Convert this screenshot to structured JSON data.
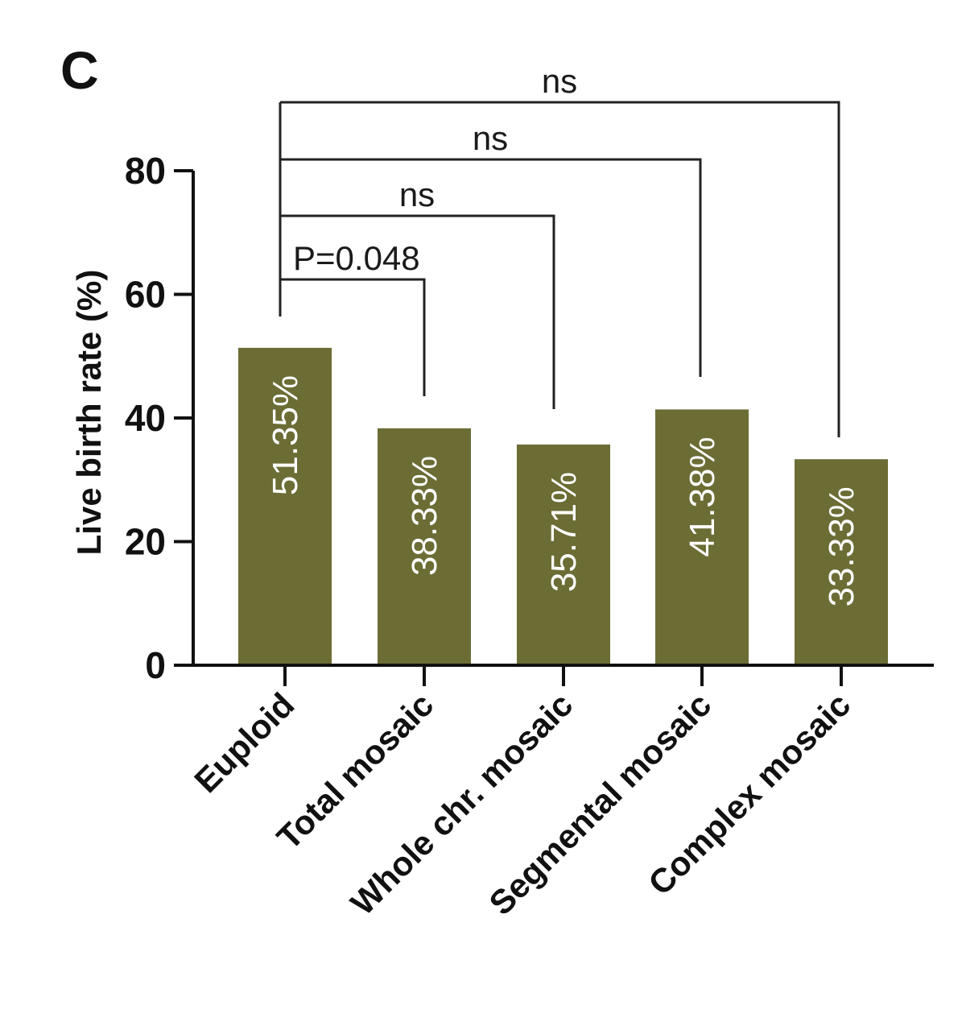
{
  "panel_label": "C",
  "colors": {
    "bar": "#6b6d35",
    "axis": "#111111",
    "bracket": "#222222",
    "bar_text": "#ffffff"
  },
  "chart_data": {
    "type": "bar",
    "title": "",
    "xlabel": "",
    "ylabel": "Live birth rate (%)",
    "ylim": [
      0,
      80
    ],
    "yticks": [
      0,
      20,
      40,
      60,
      80
    ],
    "categories": [
      "Euploid",
      "Total mosaic",
      "Whole chr. mosaic",
      "Segmental mosaic",
      "Complex mosaic"
    ],
    "values": [
      51.35,
      38.33,
      35.71,
      41.38,
      33.33
    ],
    "data_labels": [
      "51.35%",
      "38.33%",
      "35.71%",
      "41.38%",
      "33.33%"
    ],
    "grid": false,
    "legend": "none",
    "comparisons": [
      {
        "from": "Euploid",
        "to": "Total mosaic",
        "label": "P=0.048"
      },
      {
        "from": "Euploid",
        "to": "Whole chr. mosaic",
        "label": "ns"
      },
      {
        "from": "Euploid",
        "to": "Segmental mosaic",
        "label": "ns"
      },
      {
        "from": "Euploid",
        "to": "Complex mosaic",
        "label": "ns"
      }
    ]
  }
}
